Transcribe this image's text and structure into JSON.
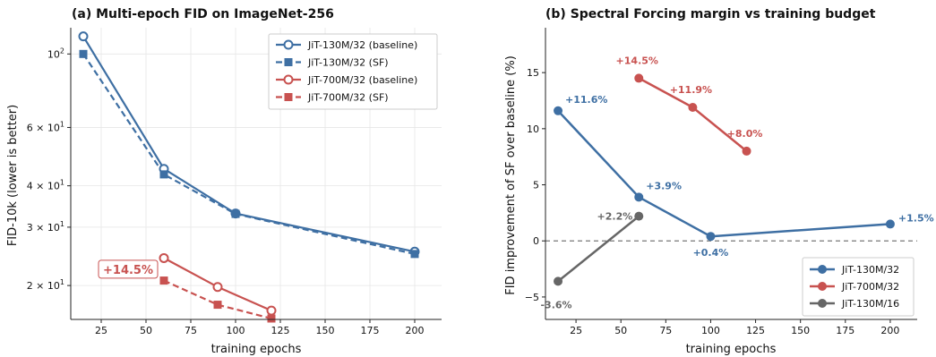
{
  "colors": {
    "blue": "#3e6fa3",
    "red": "#c85250",
    "gray": "#666666",
    "grid": "#e6e6e6",
    "zero_line": "#777777"
  },
  "chart_data": [
    {
      "type": "line",
      "title": "(a) Multi-epoch FID on ImageNet-256",
      "xlabel": "training epochs",
      "ylabel": "FID-10k (lower is better)",
      "xlim": [
        8,
        215
      ],
      "ylim": [
        15.8,
        120
      ],
      "yscale": "log",
      "grid": true,
      "legend_position": "top-right",
      "xticks": [
        25,
        50,
        75,
        100,
        125,
        150,
        175,
        200
      ],
      "xtick_labels": [
        "25",
        "50",
        "75",
        "100",
        "125",
        "150",
        "175",
        "200"
      ],
      "yticks": [
        20,
        30,
        40,
        60,
        100
      ],
      "ytick_labels": [
        {
          "base": "2 × 10",
          "exp": "1"
        },
        {
          "base": "3 × 10",
          "exp": "1"
        },
        {
          "base": "4 × 10",
          "exp": "1"
        },
        {
          "base": "6 × 10",
          "exp": "1"
        },
        {
          "base": "10",
          "exp": "2"
        }
      ],
      "series": [
        {
          "name": "JiT-130M/32 (baseline)",
          "color": "#3e6fa3",
          "dash": false,
          "marker": "circle-open",
          "x": [
            15,
            60,
            100,
            200
          ],
          "y": [
            113,
            45,
            33,
            25.3
          ]
        },
        {
          "name": "JiT-130M/32 (SF)",
          "color": "#3e6fa3",
          "dash": true,
          "marker": "square",
          "x": [
            15,
            60,
            100,
            200
          ],
          "y": [
            100,
            43.3,
            32.9,
            24.9
          ]
        },
        {
          "name": "JiT-700M/32 (baseline)",
          "color": "#c85250",
          "dash": false,
          "marker": "circle-open",
          "x": [
            60,
            90,
            120
          ],
          "y": [
            24.2,
            19.8,
            16.8
          ]
        },
        {
          "name": "JiT-700M/32 (SF)",
          "color": "#c85250",
          "dash": true,
          "marker": "square",
          "x": [
            60,
            90,
            120
          ],
          "y": [
            20.7,
            17.5,
            15.9
          ]
        }
      ],
      "annotations": [
        {
          "text": "+14.5%",
          "x": 40,
          "y": 22.4,
          "color": "#c85250",
          "boxed": true
        }
      ]
    },
    {
      "type": "line",
      "title": "(b) Spectral Forcing margin vs training budget",
      "xlabel": "training epochs",
      "ylabel": "FID improvement of SF over baseline (%)",
      "xlim": [
        8,
        215
      ],
      "ylim": [
        -7,
        19
      ],
      "grid": false,
      "legend_position": "bottom-right",
      "xticks": [
        25,
        50,
        75,
        100,
        125,
        150,
        175,
        200
      ],
      "xtick_labels": [
        "25",
        "50",
        "75",
        "100",
        "125",
        "150",
        "175",
        "200"
      ],
      "yticks": [
        -5,
        0,
        5,
        10,
        15
      ],
      "ytick_labels": [
        "−5",
        "0",
        "5",
        "10",
        "15"
      ],
      "zero_line": 0,
      "series": [
        {
          "name": "JiT-130M/32",
          "color": "#3e6fa3",
          "x": [
            15,
            60,
            100,
            200
          ],
          "y": [
            11.6,
            3.9,
            0.4,
            1.5
          ],
          "labels": [
            "+11.6%",
            "+3.9%",
            "+0.4%",
            "+1.5%"
          ],
          "label_pos": [
            "upper-right",
            "upper-right",
            "below",
            "right"
          ]
        },
        {
          "name": "JiT-700M/32",
          "color": "#c85250",
          "x": [
            60,
            90,
            120
          ],
          "y": [
            14.5,
            11.9,
            8.0
          ],
          "labels": [
            "+14.5%",
            "+11.9%",
            "+8.0%"
          ],
          "label_pos": [
            "upper-left",
            "upper-left",
            "upper-left"
          ]
        },
        {
          "name": "JiT-130M/16",
          "color": "#666666",
          "x": [
            15,
            60
          ],
          "y": [
            -3.6,
            2.2
          ],
          "labels": [
            "-3.6%",
            "+2.2%"
          ],
          "label_pos": [
            "lower-left",
            "left"
          ]
        }
      ]
    }
  ]
}
